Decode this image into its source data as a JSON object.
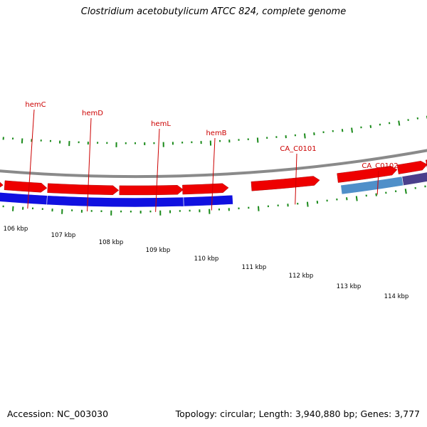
{
  "title": "Clostridium acetobutylicum ATCC 824, complete genome",
  "footer": {
    "accession": "Accession: NC_003030",
    "topology": "Topology: circular; Length: 3,940,880 bp; Genes: 3,777"
  },
  "colors": {
    "backbone": "#8a8a8a",
    "cds": "#ee0000",
    "gene_blue": "#1010e0",
    "gene_lightblue": "#4f8fc9",
    "gene_purple": "#4b3f8c",
    "label": "#cc0000",
    "gc_ticks": "#1a8a1a"
  },
  "gene_labels": [
    "hemC",
    "hemD",
    "hemL",
    "hemB",
    "CA_C0101",
    "CA_C0102"
  ],
  "ruler_labels": [
    "106 kbp",
    "107 kbp",
    "108 kbp",
    "109 kbp",
    "110 kbp",
    "111 kbp",
    "112 kbp",
    "113 kbp",
    "114 kbp"
  ]
}
